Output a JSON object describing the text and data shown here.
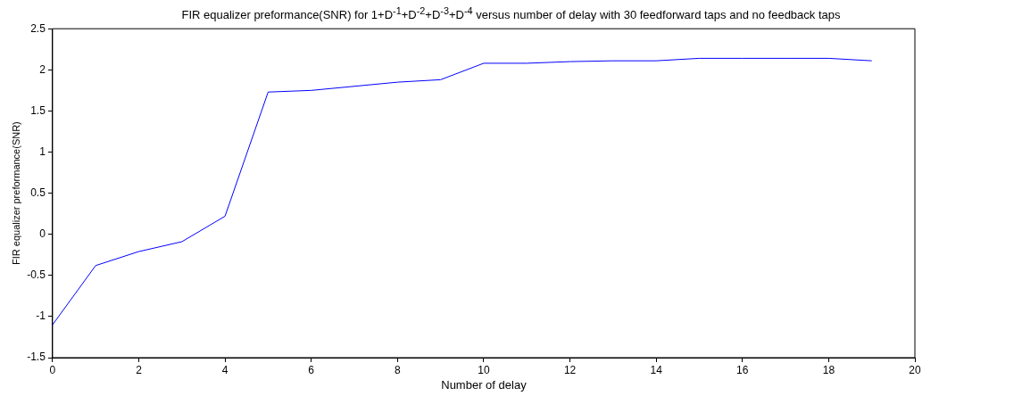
{
  "chart_data": {
    "type": "line",
    "title": "FIR equalizer preformance(SNR) for 1+D$^{-1}$+D$^{-2}$+D$^{-3}$+D$^{-4}$ versus number of delay with 30 feedforward taps and no feedback taps",
    "xlabel": "Number of delay",
    "ylabel": "FIR equalizer preformance(SNR)",
    "x": [
      0,
      1,
      2,
      3,
      4,
      5,
      6,
      7,
      8,
      9,
      10,
      11,
      12,
      13,
      14,
      15,
      16,
      17,
      18,
      19
    ],
    "series": [
      {
        "color": "#0000ff",
        "values": [
          -1.1,
          -0.38,
          -0.21,
          -0.09,
          0.22,
          1.73,
          1.75,
          1.8,
          1.85,
          1.88,
          2.08,
          2.08,
          2.1,
          2.11,
          2.11,
          2.14,
          2.14,
          2.14,
          2.14,
          2.11
        ]
      }
    ],
    "xlim": [
      0,
      20
    ],
    "xticks": [
      0,
      2,
      4,
      6,
      8,
      10,
      12,
      14,
      16,
      18,
      20
    ],
    "ylim": [
      -1.5,
      2.5
    ],
    "yticks": [
      -1.5,
      -1,
      -0.5,
      0,
      0.5,
      1,
      1.5,
      2,
      2.5
    ],
    "grid": false,
    "legend": false,
    "marker": "none",
    "line_style": "solid"
  }
}
